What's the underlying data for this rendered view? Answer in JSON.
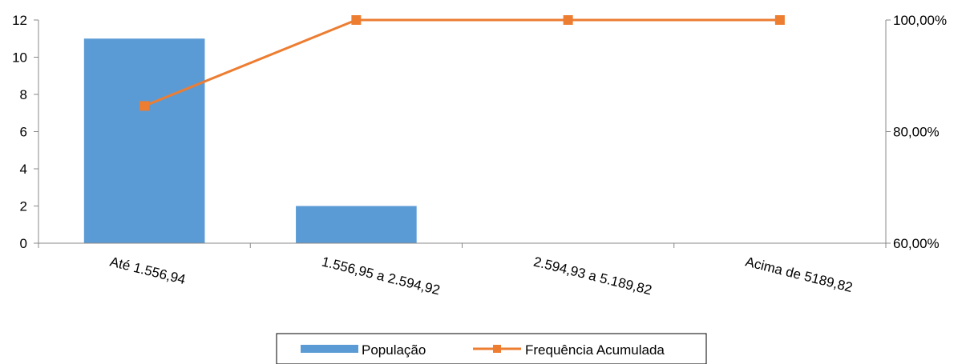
{
  "chart_data": {
    "type": "bar",
    "categories": [
      "Até 1.556,94",
      "1.556,95 a 2.594,92",
      "2.594,93 a 5.189,82",
      "Acima de 5189,82"
    ],
    "series": [
      {
        "name": "População",
        "type": "bar",
        "axis": "left",
        "values": [
          11,
          2,
          0,
          0
        ],
        "color": "#5b9bd5"
      },
      {
        "name": "Frequência Acumulada",
        "type": "line",
        "axis": "right",
        "values": [
          84.6,
          100,
          100,
          100
        ],
        "color": "#ed7d31",
        "marker": "square"
      }
    ],
    "y_left": {
      "min": 0,
      "max": 12,
      "ticks": [
        "0",
        "2",
        "4",
        "6",
        "8",
        "10",
        "12"
      ]
    },
    "y_right": {
      "min": 60,
      "max": 100,
      "ticks": [
        "60,00%",
        "80,00%",
        "100,00%"
      ]
    },
    "grid": false,
    "legend": {
      "position": "bottom",
      "entries": [
        "População",
        "Frequência Acumulada"
      ]
    }
  }
}
